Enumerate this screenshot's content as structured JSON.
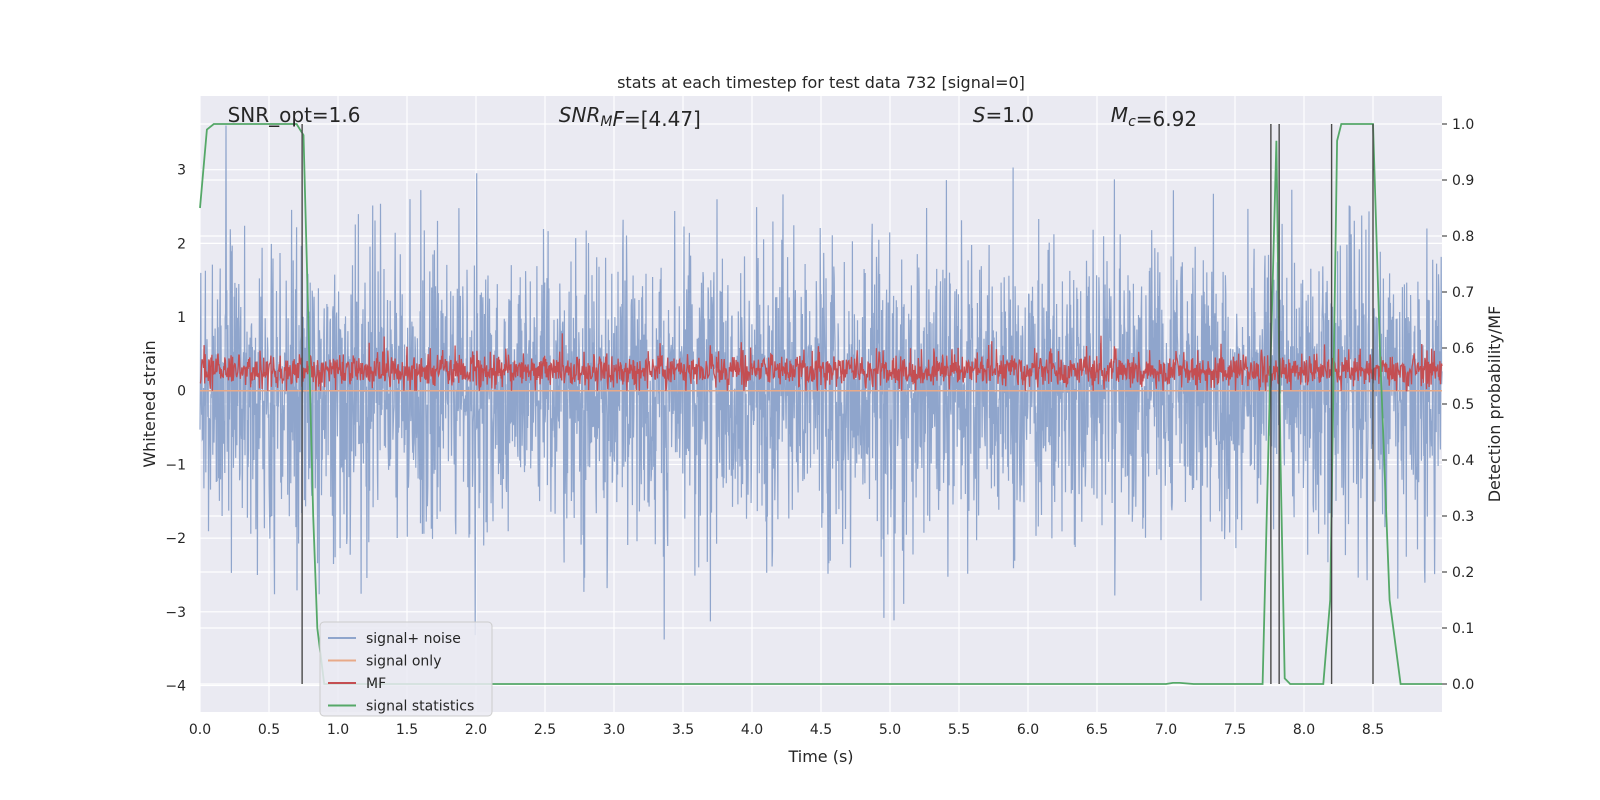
{
  "chart_data": {
    "type": "line",
    "title": "stats at each timestep for test data 732 [signal=0]",
    "xlabel": "Time (s)",
    "ylabel": "Whitened strain",
    "ylabel_right": "Detection probability/MF",
    "xlim": [
      0.0,
      9.0
    ],
    "ylim": [
      -4.36,
      4.0
    ],
    "ylim_right": [
      -0.05,
      1.05
    ],
    "x_ticks": [
      0.0,
      0.5,
      1.0,
      1.5,
      2.0,
      2.5,
      3.0,
      3.5,
      4.0,
      4.5,
      5.0,
      5.5,
      6.0,
      6.5,
      7.0,
      7.5,
      8.0,
      8.5
    ],
    "x_tick_labels": [
      "0.0",
      "0.5",
      "1.0",
      "1.5",
      "2.0",
      "2.5",
      "3.0",
      "3.5",
      "4.0",
      "4.5",
      "5.0",
      "5.5",
      "6.0",
      "6.5",
      "7.0",
      "7.5",
      "8.0",
      "8.5"
    ],
    "y_ticks": [
      3,
      2,
      1,
      0,
      -1,
      -2,
      -3,
      -4
    ],
    "y_tick_labels": [
      "3",
      "2",
      "1",
      "0",
      "−1",
      "−2",
      "−3",
      "−4"
    ],
    "y_ticks_right": [
      1.0,
      0.9,
      0.8,
      0.7,
      0.6,
      0.5,
      0.4,
      0.3,
      0.2,
      0.1,
      0.0
    ],
    "y_tick_labels_right": [
      "1.0",
      "0.9",
      "0.8",
      "0.7",
      "0.6",
      "0.5",
      "0.4",
      "0.3",
      "0.2",
      "0.1",
      "0.0"
    ],
    "grid": true,
    "legend_position": "lower-left",
    "annotations": [
      {
        "parts": [
          {
            "t": "SNR_opt=1.6",
            "style": "normal"
          }
        ],
        "x": 0.2
      },
      {
        "parts": [
          {
            "t": "SNR",
            "style": "italic"
          },
          {
            "t": "M",
            "style": "italic-sub"
          },
          {
            "t": "F",
            "style": "italic"
          },
          {
            "t": "=[4.47]",
            "style": "normal"
          }
        ],
        "x": 2.6
      },
      {
        "parts": [
          {
            "t": "S",
            "style": "italic"
          },
          {
            "t": "=1.0",
            "style": "normal"
          }
        ],
        "x": 5.6
      },
      {
        "parts": [
          {
            "t": "M",
            "style": "italic"
          },
          {
            "t": "c",
            "style": "italic-sub"
          },
          {
            "t": "=6.92",
            "style": "normal"
          }
        ],
        "x": 6.6
      }
    ],
    "series": [
      {
        "name": "signal+ noise",
        "color": "#8fa5cc",
        "axis": "left",
        "kind": "noise",
        "amplitude": 1.0
      },
      {
        "name": "signal only",
        "color": "#e8a988",
        "axis": "left",
        "kind": "flat",
        "value": 0.0
      },
      {
        "name": "MF",
        "color": "#c44e52",
        "axis": "left",
        "kind": "mf",
        "center": 0.27
      },
      {
        "name": "signal statistics",
        "color": "#55a868",
        "axis": "right",
        "kind": "line",
        "x": [
          0.0,
          0.05,
          0.1,
          0.15,
          0.2,
          0.3,
          0.4,
          0.5,
          0.6,
          0.7,
          0.75,
          0.78,
          0.82,
          0.85,
          0.9,
          1.0,
          7.0,
          7.05,
          7.1,
          7.2,
          7.7,
          7.75,
          7.8,
          7.83,
          7.86,
          7.9,
          7.95,
          8.0,
          8.14,
          8.19,
          8.24,
          8.27,
          8.5,
          8.55,
          8.62,
          8.7,
          9.0
        ],
        "y": [
          0.85,
          0.99,
          1.0,
          1.0,
          1.0,
          1.0,
          1.0,
          1.0,
          1.0,
          1.0,
          0.98,
          0.7,
          0.3,
          0.1,
          0.0,
          0.0,
          0.0,
          0.002,
          0.002,
          0.0,
          0.0,
          0.5,
          0.97,
          0.4,
          0.01,
          0.0,
          0.0,
          0.0,
          0.0,
          0.15,
          0.97,
          1.0,
          1.0,
          0.6,
          0.15,
          0.0,
          0.0
        ]
      }
    ],
    "vertical_markers": [
      0.74,
      7.76,
      7.82,
      8.2,
      8.5
    ]
  }
}
